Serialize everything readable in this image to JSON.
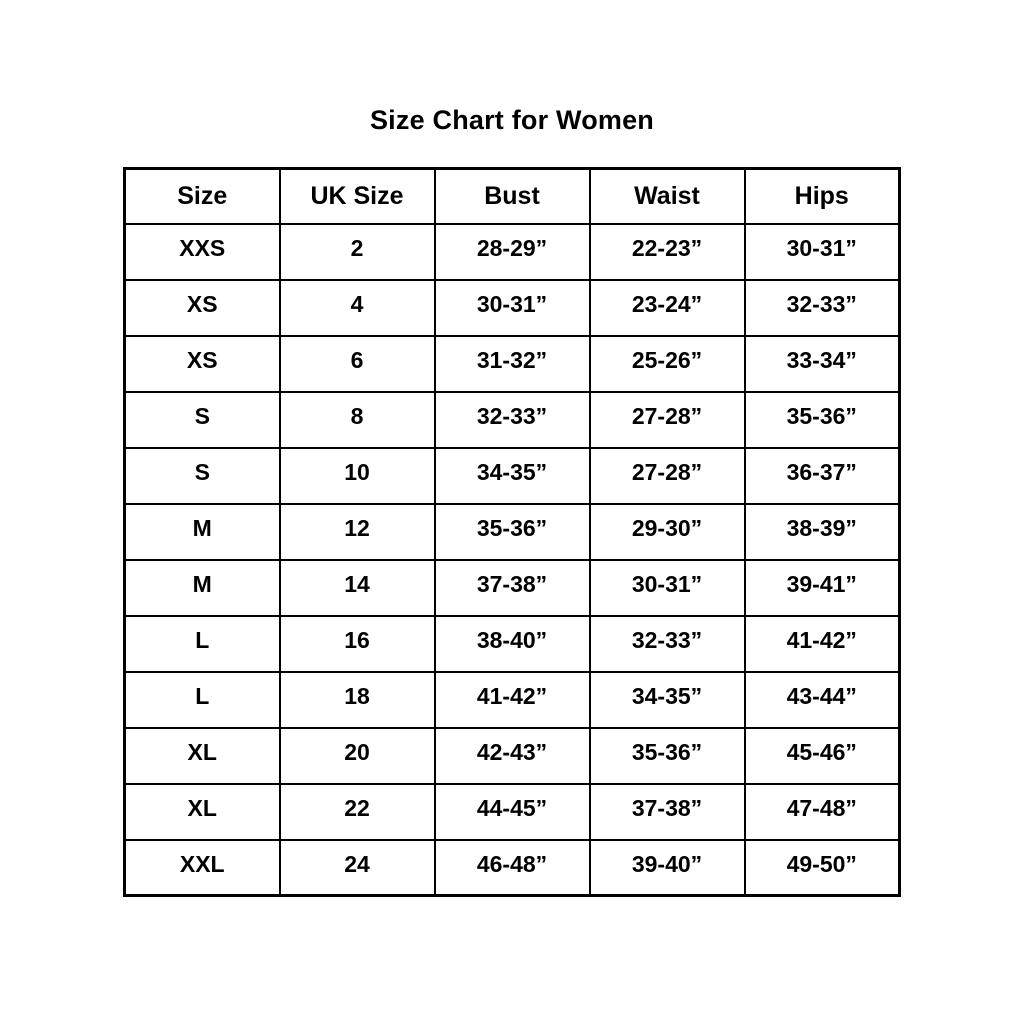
{
  "page": {
    "title": "Size Chart for Women"
  },
  "colors": {
    "background": "#ffffff",
    "text": "#000000",
    "border": "#000000"
  },
  "table": {
    "headers": [
      "Size",
      "UK Size",
      "Bust",
      "Waist",
      "Hips"
    ],
    "rows": [
      [
        "XXS",
        "2",
        "28-29”",
        "22-23”",
        "30-31”"
      ],
      [
        "XS",
        "4",
        "30-31”",
        "23-24”",
        "32-33”"
      ],
      [
        "XS",
        "6",
        "31-32”",
        "25-26”",
        "33-34”"
      ],
      [
        "S",
        "8",
        "32-33”",
        "27-28”",
        "35-36”"
      ],
      [
        "S",
        "10",
        "34-35”",
        "27-28”",
        "36-37”"
      ],
      [
        "M",
        "12",
        "35-36”",
        "29-30”",
        "38-39”"
      ],
      [
        "M",
        "14",
        "37-38”",
        "30-31”",
        "39-41”"
      ],
      [
        "L",
        "16",
        "38-40”",
        "32-33”",
        "41-42”"
      ],
      [
        "L",
        "18",
        "41-42”",
        "34-35”",
        "43-44”"
      ],
      [
        "XL",
        "20",
        "42-43”",
        "35-36”",
        "45-46”"
      ],
      [
        "XL",
        "22",
        "44-45”",
        "37-38”",
        "47-48”"
      ],
      [
        "XXL",
        "24",
        "46-48”",
        "39-40”",
        "49-50”"
      ]
    ]
  }
}
